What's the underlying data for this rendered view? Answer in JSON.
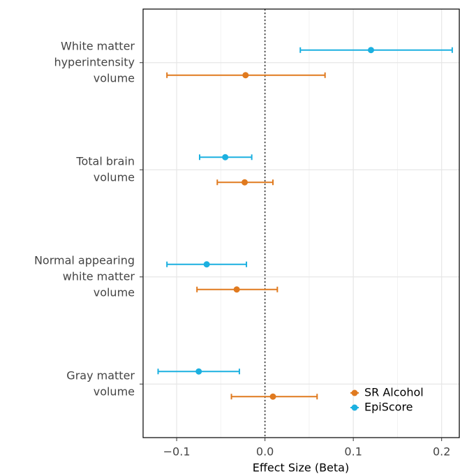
{
  "chart_data": {
    "type": "forest",
    "xlabel": "Effect Size (Beta)",
    "categories": [
      [
        "White matter",
        "hyperintensity",
        "volume"
      ],
      [
        "Total brain",
        "volume"
      ],
      [
        "Normal appearing",
        "white matter",
        "volume"
      ],
      [
        "Gray matter",
        "volume"
      ]
    ],
    "series": [
      {
        "name": "SR Alcohol",
        "color": "#e07a1f",
        "values": [
          -0.022,
          -0.023,
          -0.032,
          0.009
        ],
        "lower": [
          -0.111,
          -0.054,
          -0.077,
          -0.038
        ],
        "upper": [
          0.068,
          0.009,
          0.014,
          0.059
        ]
      },
      {
        "name": "EpiScore",
        "color": "#1bb0e0",
        "values": [
          0.12,
          -0.045,
          -0.066,
          -0.075
        ],
        "lower": [
          0.04,
          -0.074,
          -0.111,
          -0.121
        ],
        "upper": [
          0.212,
          -0.015,
          -0.021,
          -0.029
        ]
      }
    ],
    "xlim": [
      -0.138,
      0.22
    ],
    "xticks": [
      {
        "value": -0.1,
        "label": "−0.1"
      },
      {
        "value": 0,
        "label": "0.0"
      },
      0.1,
      0.2
    ],
    "minor_xticks": [
      -0.05,
      0.05,
      0.15
    ],
    "reference_line": 0,
    "grid": true,
    "legend": "bottom-right"
  }
}
